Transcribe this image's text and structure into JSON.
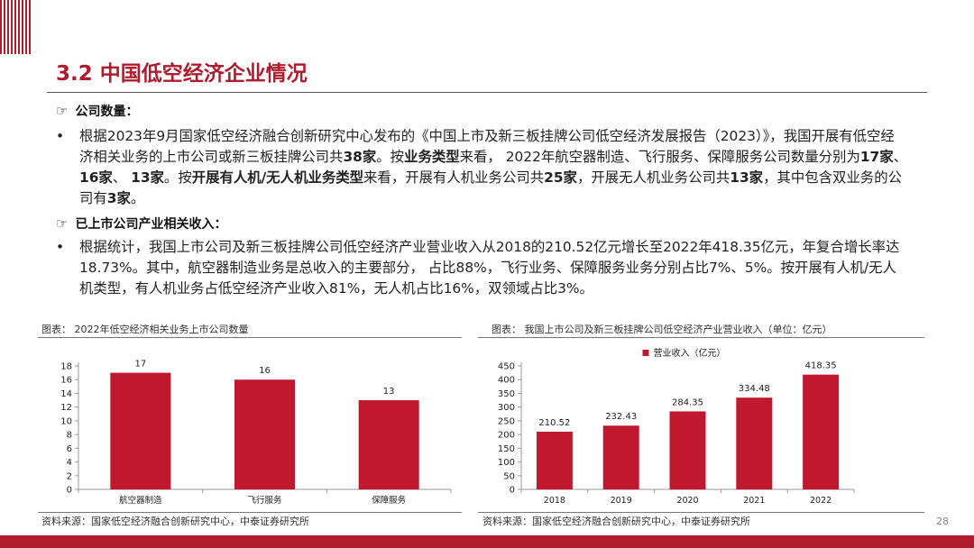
{
  "title": "3.2 中国低空经济企业情况",
  "section1": {
    "icon": "pointing-hand-icon",
    "heading": "公司数量："
  },
  "para1": {
    "segments": [
      {
        "t": "根据2023年9月国家低空经济融合创新研究中心发布的《中国上市及新三板挂牌公司低空经济发展报告（2023）》，我国开展有低空经济相关业务的上市公司或新三板挂牌公司共",
        "b": false
      },
      {
        "t": "38家",
        "b": true
      },
      {
        "t": "。按",
        "b": false
      },
      {
        "t": "业务类型",
        "b": true
      },
      {
        "t": "来看， 2022年航空器制造、飞行服务、保障服务公司数量分别为",
        "b": false
      },
      {
        "t": "17家",
        "b": true
      },
      {
        "t": "、 ",
        "b": false
      },
      {
        "t": "16家",
        "b": true
      },
      {
        "t": "、 ",
        "b": false
      },
      {
        "t": "13家",
        "b": true
      },
      {
        "t": "。按",
        "b": false
      },
      {
        "t": "开展有人机/无人机业务类型",
        "b": true
      },
      {
        "t": "来看，开展有人机业务公司共",
        "b": false
      },
      {
        "t": "25家",
        "b": true
      },
      {
        "t": "，开展无人机业务公司共",
        "b": false
      },
      {
        "t": "13家",
        "b": true
      },
      {
        "t": "，其中包含双业务的公司有",
        "b": false
      },
      {
        "t": "3家",
        "b": true
      },
      {
        "t": "。",
        "b": false
      }
    ]
  },
  "section2": {
    "icon": "pointing-hand-icon",
    "heading": "已上市公司产业相关收入："
  },
  "para2": {
    "segments": [
      {
        "t": "根据统计，我国上市公司及新三板挂牌公司低空经济产业营业收入从2018的210.52亿元增长至2022年418.35亿元，年复合增长率达18.73%。其中，航空器制造业务是总收入的主要部分， 占比88%，飞行业务、保障服务业务分别占比7%、5%。按开展有人机/无人机类型，有人机业务占低空经济产业收入81%，无人机占比16%，双领域占比3%。",
        "b": false
      }
    ]
  },
  "chart_data": [
    {
      "type": "bar",
      "caption": "图表： 2022年低空经济相关业务上市公司数量",
      "categories": [
        "航空器制造",
        "飞行服务",
        "保障服务"
      ],
      "values": [
        17,
        16,
        13
      ],
      "ylim": [
        0,
        18
      ],
      "yticks": [
        0,
        2,
        4,
        6,
        8,
        10,
        12,
        14,
        16,
        18
      ],
      "color": "#c0182e",
      "source": "资料来源：国家低空经济融合创新研究中心，中泰证券研究所"
    },
    {
      "type": "bar",
      "caption": "图表： 我国上市公司及新三板挂牌公司低空经济产业营业收入（单位：亿元）",
      "categories": [
        "2018",
        "2019",
        "2020",
        "2021",
        "2022"
      ],
      "values": [
        210.52,
        232.43,
        284.35,
        334.48,
        418.35
      ],
      "labels": [
        "210.52",
        "232.43",
        "284.35",
        "334.48",
        "418.35"
      ],
      "legend": "营业收入（亿元）",
      "ylim": [
        0,
        450
      ],
      "yticks": [
        0,
        50,
        100,
        150,
        200,
        250,
        300,
        350,
        400,
        450
      ],
      "color": "#c0182e",
      "source": "资料来源：国家低空经济融合创新研究中心，中泰证券研究所"
    }
  ],
  "page_number": "28"
}
